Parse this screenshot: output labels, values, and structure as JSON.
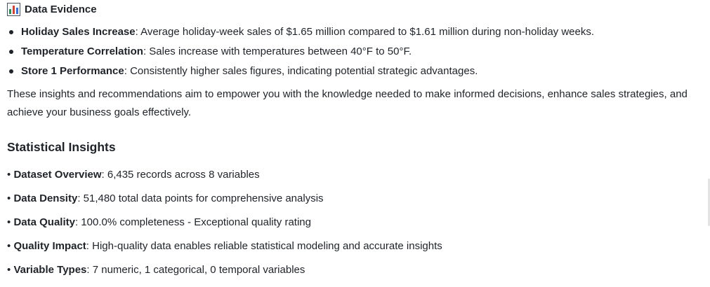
{
  "evidence": {
    "icon": "bar-chart-icon",
    "title": "Data Evidence",
    "items": [
      {
        "label": "Holiday Sales Increase",
        "text": ": Average holiday-week sales of $1.65 million compared to $1.61 million during non-holiday weeks."
      },
      {
        "label": "Temperature Correlation",
        "text": ": Sales increase with temperatures between 40°F to 50°F."
      },
      {
        "label": "Store 1 Performance",
        "text": ": Consistently higher sales figures, indicating potential strategic advantages."
      }
    ]
  },
  "summary_paragraph": "These insights and recommendations aim to empower you with the knowledge needed to make informed decisions, enhance sales strategies, and achieve your business goals effectively.",
  "stats": {
    "title": "Statistical Insights",
    "bullet": "•",
    "items": [
      {
        "label": "Dataset Overview",
        "text": ": 6,435 records across 8 variables"
      },
      {
        "label": "Data Density",
        "text": ": 51,480 total data points for comprehensive analysis"
      },
      {
        "label": "Data Quality",
        "text": ": 100.0% completeness - Exceptional quality rating"
      },
      {
        "label": "Quality Impact",
        "text": ": High-quality data enables reliable statistical modeling and accurate insights"
      },
      {
        "label": "Variable Types",
        "text": ": 7 numeric, 1 categorical, 0 temporal variables"
      }
    ]
  },
  "colors": {
    "text": "#1f2328",
    "icon_frame": "#4a5560",
    "icon_bars": [
      "#2e8b57",
      "#d04437",
      "#3b6fd4"
    ]
  }
}
